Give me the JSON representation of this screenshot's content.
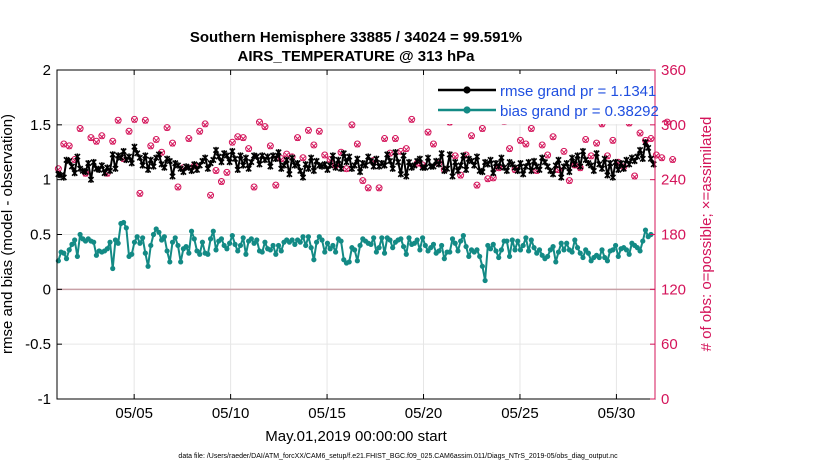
{
  "chart_data": {
    "type": "line",
    "title_line1": "Southern Hemisphere 33885 / 34024 = 99.591%",
    "title_line2": "AIRS_TEMPERATURE @ 313 hPa",
    "ylabel_left": "rmse and bias (model - observation)",
    "ylabel_right": "# of obs: o=possible; ×=assimilated",
    "xlabel": "May.01,2019 00:00:00 start",
    "footer": "data file: /Users/raeder/DAI/ATM_forcXX/CAM6_setup/f.e21.FHIST_BGC.f09_025.CAM6assim.011/Diags_NTrS_2019-05/obs_diag_output.nc",
    "ylim_left": [
      -1,
      2
    ],
    "yticks_left": [
      -1,
      -0.5,
      0,
      0.5,
      1,
      1.5,
      2
    ],
    "ytick_labels_left": [
      "-1",
      "-0.5",
      "0",
      "0.5",
      "1",
      "1.5",
      "2"
    ],
    "ylim_right": [
      0,
      360
    ],
    "yticks_right": [
      0,
      60,
      120,
      180,
      240,
      300,
      360
    ],
    "ytick_labels_right": [
      "0",
      "60",
      "120",
      "180",
      "240",
      "300",
      "360"
    ],
    "xlim_days": [
      1,
      32
    ],
    "xtick_days": [
      5,
      10,
      15,
      20,
      25,
      30
    ],
    "xtick_labels": [
      "05/05",
      "05/10",
      "05/15",
      "05/20",
      "05/25",
      "05/30"
    ],
    "legend_location": "top-right",
    "colors": {
      "rmse": "#000000",
      "bias": "#138a85",
      "obs": "#d4145a",
      "zero_line": "#c8a0a6",
      "legend_text": "#1f4fe0",
      "grid": "#e6e6e6"
    },
    "series": [
      {
        "name": "rmse",
        "legend": "rmse grand pr = 1.1341",
        "values": [
          1.05,
          1.04,
          1.02,
          1.18,
          1.17,
          1.12,
          1.06,
          1.21,
          1.1,
          1.08,
          1.07,
          1.15,
          1.0,
          1.16,
          1.1,
          1.09,
          1.13,
          1.06,
          1.11,
          1.08,
          1.23,
          1.1,
          1.22,
          1.2,
          1.26,
          1.18,
          1.21,
          1.15,
          1.3,
          1.24,
          1.2,
          1.13,
          1.22,
          1.09,
          1.18,
          1.12,
          1.2,
          1.23,
          1.14,
          1.11,
          1.19,
          1.17,
          1.03,
          1.15,
          1.13,
          1.1,
          1.07,
          1.12,
          1.11,
          1.08,
          1.14,
          1.09,
          1.13,
          1.17,
          1.2,
          1.1,
          1.15,
          1.18,
          1.27,
          1.21,
          1.16,
          1.24,
          1.22,
          1.16,
          1.26,
          1.19,
          1.09,
          1.22,
          1.13,
          1.2,
          1.1,
          1.16,
          1.22,
          1.21,
          1.14,
          1.22,
          1.18,
          1.21,
          1.12,
          1.22,
          1.19,
          1.25,
          1.1,
          1.13,
          1.18,
          1.05,
          1.2,
          1.13,
          1.15,
          1.08,
          1.02,
          1.14,
          1.1,
          1.2,
          1.08,
          1.17,
          1.13,
          1.12,
          1.14,
          1.09,
          1.13,
          1.22,
          1.11,
          1.18,
          1.1,
          1.24,
          1.16,
          1.21,
          1.1,
          1.13,
          1.19,
          1.07,
          1.15,
          1.13,
          1.21,
          1.17,
          1.12,
          1.19,
          1.12,
          1.15,
          1.13,
          1.23,
          1.17,
          1.1,
          1.25,
          1.16,
          1.05,
          1.22,
          1.03,
          1.16,
          1.11,
          1.13,
          1.17,
          1.19,
          1.11,
          1.11,
          1.2,
          1.12,
          1.12,
          1.17,
          1.14,
          1.24,
          1.08,
          1.1,
          1.23,
          1.03,
          1.16,
          1.08,
          1.13,
          1.22,
          1.09,
          1.19,
          1.17,
          1.13,
          1.21,
          1.08,
          1.07,
          1.16,
          1.14,
          1.18,
          1.06,
          1.15,
          1.12,
          1.2,
          1.11,
          1.08,
          1.16,
          1.14,
          1.11,
          1.08,
          1.15,
          1.05,
          1.12,
          1.16,
          1.08,
          1.17,
          1.12,
          1.09,
          1.2,
          1.16,
          1.12,
          1.08,
          1.05,
          1.13,
          1.18,
          1.02,
          1.12,
          1.15,
          1.07,
          1.2,
          1.14,
          1.22,
          1.12,
          1.26,
          1.18,
          1.15,
          1.13,
          1.08,
          1.24,
          1.14,
          1.1,
          1.19,
          1.04,
          1.15,
          1.02,
          1.16,
          1.09,
          1.15,
          1.1,
          1.18,
          1.14,
          1.2,
          1.17,
          1.21,
          1.27,
          1.19,
          1.34,
          1.29,
          1.19,
          1.14
        ]
      },
      {
        "name": "bias",
        "legend": "bias grand pr = 0.38292",
        "values": [
          0.26,
          0.34,
          0.33,
          0.28,
          0.36,
          0.41,
          0.45,
          0.3,
          0.5,
          0.46,
          0.44,
          0.46,
          0.44,
          0.43,
          0.31,
          0.35,
          0.34,
          0.35,
          0.37,
          0.43,
          0.19,
          0.45,
          0.42,
          0.6,
          0.61,
          0.56,
          0.3,
          0.32,
          0.43,
          0.48,
          0.42,
          0.47,
          0.33,
          0.21,
          0.4,
          0.5,
          0.55,
          0.52,
          0.45,
          0.48,
          0.35,
          0.25,
          0.43,
          0.47,
          0.4,
          0.25,
          0.37,
          0.39,
          0.33,
          0.53,
          0.46,
          0.35,
          0.32,
          0.43,
          0.33,
          0.32,
          0.46,
          0.53,
          0.36,
          0.44,
          0.46,
          0.4,
          0.37,
          0.42,
          0.49,
          0.41,
          0.35,
          0.4,
          0.47,
          0.32,
          0.44,
          0.46,
          0.42,
          0.45,
          0.35,
          0.34,
          0.43,
          0.37,
          0.36,
          0.4,
          0.32,
          0.4,
          0.35,
          0.43,
          0.45,
          0.43,
          0.45,
          0.41,
          0.45,
          0.43,
          0.48,
          0.4,
          0.48,
          0.38,
          0.27,
          0.43,
          0.48,
          0.45,
          0.34,
          0.42,
          0.37,
          0.4,
          0.34,
          0.46,
          0.44,
          0.27,
          0.24,
          0.25,
          0.38,
          0.36,
          0.26,
          0.4,
          0.46,
          0.44,
          0.42,
          0.41,
          0.47,
          0.34,
          0.38,
          0.47,
          0.33,
          0.47,
          0.45,
          0.38,
          0.43,
          0.45,
          0.46,
          0.39,
          0.32,
          0.47,
          0.41,
          0.42,
          0.45,
          0.36,
          0.47,
          0.4,
          0.35,
          0.38,
          0.41,
          0.33,
          0.35,
          0.4,
          0.28,
          0.34,
          0.34,
          0.46,
          0.42,
          0.35,
          0.44,
          0.49,
          0.39,
          0.3,
          0.36,
          0.34,
          0.36,
          0.3,
          0.21,
          0.08,
          0.4,
          0.37,
          0.41,
          0.35,
          0.29,
          0.36,
          0.44,
          0.44,
          0.3,
          0.45,
          0.36,
          0.44,
          0.36,
          0.4,
          0.47,
          0.35,
          0.45,
          0.38,
          0.33,
          0.36,
          0.31,
          0.28,
          0.3,
          0.36,
          0.39,
          0.25,
          0.34,
          0.42,
          0.36,
          0.42,
          0.36,
          0.34,
          0.45,
          0.38,
          0.33,
          0.29,
          0.36,
          0.33,
          0.26,
          0.29,
          0.31,
          0.29,
          0.36,
          0.29,
          0.26,
          0.35,
          0.36,
          0.4,
          0.3,
          0.37,
          0.38,
          0.36,
          0.32,
          0.42,
          0.4,
          0.38,
          0.35,
          0.44,
          0.54,
          0.48,
          0.5
        ]
      },
      {
        "name": "obs_possible",
        "values": [
          252,
          274,
          279,
          290,
          277,
          259,
          262,
          292,
          296,
          296,
          247,
          236,
          286,
          263,
          282,
          258,
          288,
          280,
          247,
          274,
          282,
          290,
          305,
          311,
          263,
          289,
          293,
          279,
          306,
          283,
          225,
          238,
          305,
          260,
          277,
          284,
          284,
          303,
          270,
          291,
          297,
          285,
          280,
          255,
          232,
          268,
          253,
          262,
          285,
          259,
          255,
          254,
          293,
          261,
          301,
          259,
          223,
          247,
          250,
          246,
          238,
          303,
          248,
          270,
          281,
          241,
          287,
          248,
          286,
          233,
          274,
          260,
          232,
          272,
          303,
          290,
          298,
          229,
          277,
          256,
          234,
          268,
          263,
          312,
          268,
          236,
          265,
          273,
          286,
          270,
          264,
          276,
          294,
          247,
          278,
          246,
          293,
          261,
          267,
          240,
          262,
          279,
          256,
          299,
          270,
          279,
          252,
          235,
          300,
          247,
          279,
          275,
          239,
          281,
          231,
          302,
          261,
          263,
          231,
          271,
          285,
          235,
          269,
          244,
          285,
          308,
          271,
          270,
          274,
          304,
          306,
          249,
          258,
          264,
          256,
          258,
          292,
          272,
          279,
          252,
          258,
          273,
          251,
          279,
          303,
          297,
          266,
          293,
          245,
          265,
          267,
          240,
          288,
          250,
          234,
          249,
          296,
          239,
          241,
          296,
          242,
          303,
          253,
          272,
          304,
          254,
          274,
          279,
          251,
          274,
          283,
          238,
          279,
          244,
          296,
          246,
          250,
          240,
          278,
          286,
          267,
          269,
          287,
          279,
          251,
          273,
          271,
          258,
          239,
          279,
          256,
          279,
          253,
          264,
          284,
          251,
          266,
          267,
          280,
          247,
          301,
          258,
          266,
          260,
          283,
          259,
          259,
          266,
          254,
          258,
          302,
          303,
          244,
          276,
          291,
          237,
          283,
          296,
          285,
          250,
          267,
          267,
          264,
          260,
          303,
          305,
          262,
          287
        ]
      },
      {
        "name": "obs_assimilated",
        "values": [
          251,
          273,
          278,
          289,
          276,
          258,
          261,
          291,
          295,
          295,
          246,
          235,
          285,
          262,
          281,
          257,
          287,
          279,
          246,
          273,
          281,
          289,
          304,
          310,
          262,
          288,
          292,
          278,
          305,
          282,
          224,
          237,
          304,
          259,
          276,
          283,
          283,
          302,
          269,
          290,
          296,
          284,
          279,
          254,
          231,
          267,
          252,
          261,
          284,
          258,
          254,
          253,
          292,
          260,
          300,
          258,
          222,
          246,
          249,
          245,
          237,
          302,
          247,
          269,
          280,
          240,
          286,
          247,
          285,
          232,
          273,
          259,
          231,
          271,
          302,
          289,
          297,
          228,
          276,
          255,
          233,
          267,
          262,
          311,
          267,
          235,
          264,
          272,
          285,
          269,
          263,
          275,
          293,
          246,
          277,
          245,
          292,
          260,
          266,
          239,
          261,
          278,
          255,
          298,
          269,
          278,
          251,
          234,
          299,
          246,
          278,
          274,
          238,
          280,
          230,
          301,
          260,
          262,
          230,
          270,
          284,
          234,
          268,
          243,
          284,
          307,
          270,
          269,
          273,
          303,
          305,
          248,
          257,
          263,
          255,
          257,
          291,
          271,
          278,
          251,
          257,
          272,
          250,
          278,
          302,
          296,
          265,
          292,
          244,
          264,
          266,
          239,
          287,
          249,
          233,
          248,
          295,
          238,
          240,
          295,
          241,
          302,
          252,
          271,
          303,
          253,
          273,
          278,
          250,
          273,
          282,
          237,
          278,
          243,
          295,
          245,
          249,
          239,
          277,
          285,
          266,
          268,
          286,
          278,
          250,
          272,
          270,
          257,
          238,
          278,
          255,
          278,
          252,
          263,
          283,
          250,
          265,
          266,
          279,
          246,
          300,
          257,
          265,
          259,
          282,
          258,
          258,
          265,
          253,
          257,
          301,
          302,
          243,
          275,
          290,
          236,
          282,
          295,
          284,
          249,
          266,
          266,
          263,
          259,
          302,
          304,
          261,
          286
        ]
      }
    ]
  }
}
